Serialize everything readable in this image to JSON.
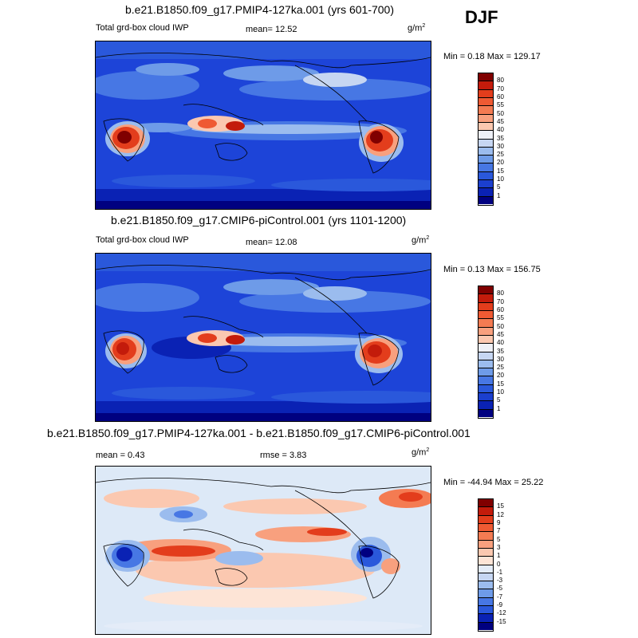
{
  "season": "DJF",
  "panels": [
    {
      "title": "b.e21.B1850.f09_g17.PMIP4-127ka.001 (yrs 601-700)",
      "left_label": "Total grd-box cloud IWP",
      "mean_label": "mean=  12.52",
      "units": "g/m",
      "units_exp": "2",
      "minmax": "Min =  0.18 Max = 129.17",
      "colorbar": {
        "labels": [
          "80",
          "70",
          "60",
          "55",
          "50",
          "45",
          "40",
          "35",
          "30",
          "25",
          "20",
          "15",
          "10",
          "5",
          "1"
        ],
        "colors": [
          "#800000",
          "#c31b0b",
          "#e33d1c",
          "#ef5a33",
          "#f47b52",
          "#f8a07e",
          "#fbc8b0",
          "#eef0f6",
          "#c6d6f2",
          "#9bbcee",
          "#6e9be8",
          "#4777e4",
          "#2a58db",
          "#1b3fce",
          "#0a22b4",
          "#000080"
        ]
      }
    },
    {
      "title": "b.e21.B1850.f09_g17.CMIP6-piControl.001 (yrs 1101-1200)",
      "left_label": "Total grd-box cloud IWP",
      "mean_label": "mean=  12.08",
      "units": "g/m",
      "units_exp": "2",
      "minmax": "Min =  0.13 Max = 156.75",
      "colorbar": {
        "labels": [
          "80",
          "70",
          "60",
          "55",
          "50",
          "45",
          "40",
          "35",
          "30",
          "25",
          "20",
          "15",
          "10",
          "5",
          "1"
        ],
        "colors": [
          "#800000",
          "#c31b0b",
          "#e33d1c",
          "#ef5a33",
          "#f47b52",
          "#f8a07e",
          "#fbc8b0",
          "#eef0f6",
          "#c6d6f2",
          "#9bbcee",
          "#6e9be8",
          "#4777e4",
          "#2a58db",
          "#1b3fce",
          "#0a22b4",
          "#000080"
        ]
      }
    },
    {
      "title": "b.e21.B1850.f09_g17.PMIP4-127ka.001 - b.e21.B1850.f09_g17.CMIP6-piControl.001",
      "mean_label": "mean =   0.43",
      "rmse_label": "rmse =   3.83",
      "units": "g/m",
      "units_exp": "2",
      "minmax": "Min = -44.94 Max =  25.22",
      "colorbar": {
        "labels": [
          "15",
          "12",
          "9",
          "7",
          "5",
          "3",
          "1",
          "0",
          "-1",
          "-3",
          "-5",
          "-7",
          "-9",
          "-12",
          "-15"
        ],
        "colors": [
          "#800000",
          "#c31b0b",
          "#e33d1c",
          "#ef5a33",
          "#f47b52",
          "#f8a07e",
          "#fbc8b0",
          "#fde4d6",
          "#e4ecf8",
          "#c6d6f2",
          "#9bbcee",
          "#6e9be8",
          "#4777e4",
          "#2a58db",
          "#0a22b4",
          "#000080"
        ]
      }
    }
  ],
  "colors": {
    "abs_background": "#1d44d8",
    "diff_background": "#dde9f7"
  }
}
